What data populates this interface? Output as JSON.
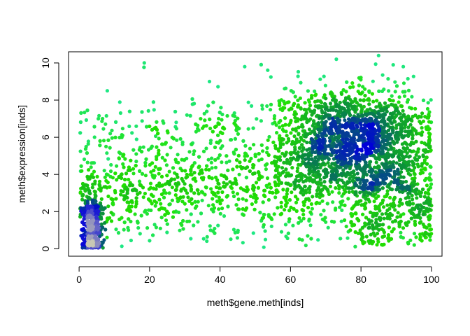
{
  "chart_data": {
    "type": "scatter",
    "title": "",
    "xlabel": "meth$gene.meth[inds]",
    "ylabel": "meth$expression[inds]",
    "xlim": [
      -3,
      103
    ],
    "ylim": [
      -0.4,
      10.6
    ],
    "x_ticks": [
      0,
      20,
      40,
      60,
      80,
      100
    ],
    "x_tick_labels": [
      "0",
      "20",
      "40",
      "60",
      "80",
      "100"
    ],
    "y_ticks": [
      0,
      2,
      4,
      6,
      8,
      10
    ],
    "y_tick_labels": [
      "0",
      "2",
      "4",
      "6",
      "8",
      "10"
    ],
    "grid": false,
    "legend": "none",
    "color_scale": {
      "description": "density coloring from low to high",
      "low": "#1de9a0",
      "mid_low": "#22e000",
      "mid": "#0a8f3c",
      "mid_high": "#0000d8",
      "high": "#c8c8b4"
    },
    "density_clusters": [
      {
        "name": "low-methylation cluster",
        "center_x": 3.5,
        "center_y": 1.0,
        "spread_x": 1.8,
        "spread_y": 0.9
      },
      {
        "name": "high-methylation cluster",
        "center_x": 76,
        "center_y": 6.0,
        "spread_x": 9,
        "spread_y": 1.1
      }
    ],
    "point_count_estimate": 5000
  }
}
